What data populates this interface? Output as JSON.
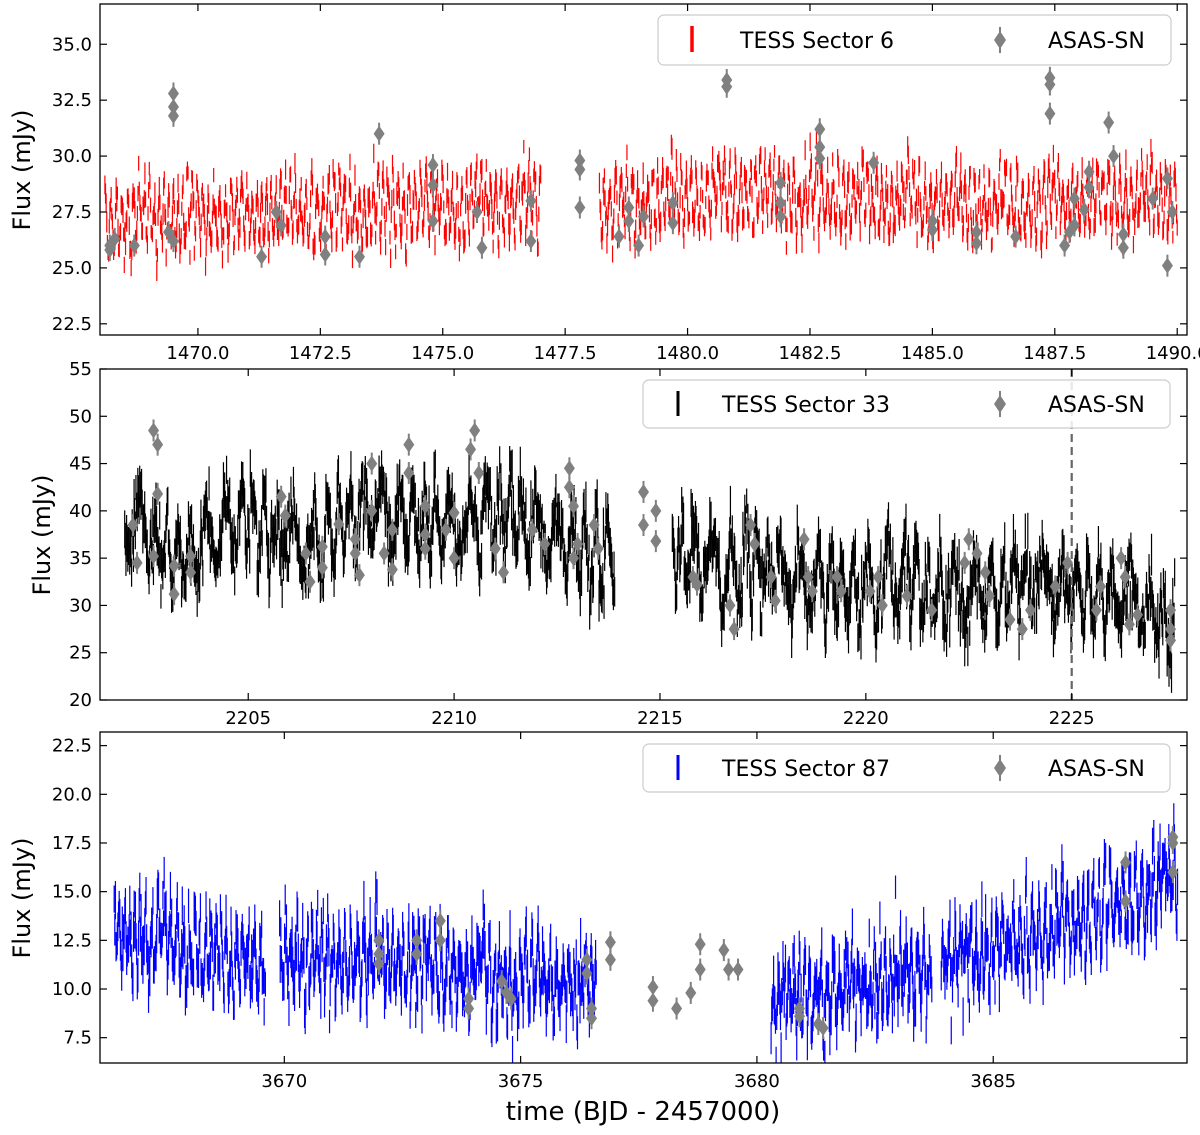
{
  "figure": {
    "xlabel": "time (BJD - 2457000)"
  },
  "colors": {
    "sector6": "#ff0000",
    "sector33": "#000000",
    "sector87": "#0000ff",
    "asassn": "#808080",
    "marker_line": "#666666"
  },
  "chart_data": [
    {
      "type": "scatter",
      "panel": "top",
      "ylabel": "Flux (mJy)",
      "xlim": [
        1468.0,
        1490.2
      ],
      "ylim": [
        22.0,
        36.8
      ],
      "xticks": [
        1470.0,
        1472.5,
        1475.0,
        1477.5,
        1480.0,
        1482.5,
        1485.0,
        1487.5,
        1490.0
      ],
      "xtick_labels": [
        "1470.0",
        "1472.5",
        "1475.0",
        "1477.5",
        "1480.0",
        "1482.5",
        "1485.0",
        "1487.5",
        "1490.0"
      ],
      "yticks": [
        22.5,
        25.0,
        27.5,
        30.0,
        32.5,
        35.0
      ],
      "ytick_labels": [
        "22.5",
        "25.0",
        "27.5",
        "30.0",
        "32.5",
        "35.0"
      ],
      "legend": [
        "TESS Sector 6",
        "ASAS-SN"
      ],
      "legend_position": "top-right",
      "tess": {
        "name": "TESS Sector 6",
        "color": "#ff0000",
        "segments": [
          [
            1468.1,
            1477.0
          ],
          [
            1478.2,
            1490.0
          ]
        ],
        "levels": [
          [
            1468.1,
            27.0
          ],
          [
            1471.0,
            27.2
          ],
          [
            1474.5,
            27.6
          ],
          [
            1477.0,
            27.8
          ],
          [
            1478.2,
            27.5
          ],
          [
            1481.0,
            28.2
          ],
          [
            1484.0,
            27.8
          ],
          [
            1487.0,
            27.6
          ],
          [
            1490.0,
            28.0
          ]
        ],
        "amplitude": 1.6,
        "period": 0.105,
        "noise": 0.35
      },
      "asassn": {
        "name": "ASAS-SN",
        "color": "#808080",
        "points": [
          [
            1468.2,
            26.0
          ],
          [
            1468.2,
            25.8
          ],
          [
            1468.3,
            26.3
          ],
          [
            1468.7,
            26.0
          ],
          [
            1469.5,
            32.8
          ],
          [
            1469.5,
            32.2
          ],
          [
            1469.5,
            31.8
          ],
          [
            1469.4,
            26.6
          ],
          [
            1469.5,
            26.2
          ],
          [
            1471.3,
            25.5
          ],
          [
            1471.6,
            27.5
          ],
          [
            1471.7,
            26.9
          ],
          [
            1472.6,
            26.4
          ],
          [
            1472.6,
            25.6
          ],
          [
            1473.3,
            25.5
          ],
          [
            1473.7,
            31.0
          ],
          [
            1474.8,
            29.6
          ],
          [
            1474.8,
            28.7
          ],
          [
            1474.8,
            27.1
          ],
          [
            1475.7,
            27.5
          ],
          [
            1475.8,
            25.9
          ],
          [
            1476.8,
            28.0
          ],
          [
            1476.8,
            26.2
          ],
          [
            1477.8,
            29.8
          ],
          [
            1477.8,
            29.4
          ],
          [
            1477.8,
            27.7
          ],
          [
            1478.6,
            26.4
          ],
          [
            1478.8,
            27.7
          ],
          [
            1478.8,
            27.1
          ],
          [
            1479.0,
            26.0
          ],
          [
            1479.1,
            27.3
          ],
          [
            1479.7,
            27.9
          ],
          [
            1479.7,
            27.0
          ],
          [
            1480.8,
            33.1
          ],
          [
            1480.8,
            33.4
          ],
          [
            1481.9,
            28.8
          ],
          [
            1481.9,
            27.9
          ],
          [
            1481.9,
            27.3
          ],
          [
            1482.7,
            31.2
          ],
          [
            1482.7,
            30.4
          ],
          [
            1482.7,
            29.9
          ],
          [
            1483.8,
            29.7
          ],
          [
            1485.0,
            27.1
          ],
          [
            1485.0,
            26.7
          ],
          [
            1485.9,
            26.6
          ],
          [
            1485.9,
            26.1
          ],
          [
            1486.7,
            26.4
          ],
          [
            1487.4,
            33.2
          ],
          [
            1487.4,
            33.5
          ],
          [
            1487.4,
            31.9
          ],
          [
            1487.7,
            26.0
          ],
          [
            1487.8,
            26.6
          ],
          [
            1487.9,
            26.9
          ],
          [
            1487.9,
            28.1
          ],
          [
            1488.1,
            27.6
          ],
          [
            1488.2,
            28.6
          ],
          [
            1488.2,
            29.3
          ],
          [
            1488.6,
            31.5
          ],
          [
            1488.7,
            30.0
          ],
          [
            1488.9,
            26.5
          ],
          [
            1488.9,
            25.9
          ],
          [
            1489.5,
            28.1
          ],
          [
            1489.8,
            29.0
          ],
          [
            1489.9,
            27.5
          ],
          [
            1489.8,
            25.1
          ]
        ]
      }
    },
    {
      "type": "scatter",
      "panel": "middle",
      "ylabel": "Flux (mJy)",
      "xlim": [
        2201.4,
        2227.8
      ],
      "ylim": [
        20,
        55
      ],
      "xticks": [
        2205,
        2210,
        2215,
        2220,
        2225
      ],
      "xtick_labels": [
        "2205",
        "2210",
        "2215",
        "2220",
        "2225"
      ],
      "yticks": [
        20,
        25,
        30,
        35,
        40,
        45,
        50,
        55
      ],
      "ytick_labels": [
        "20",
        "25",
        "30",
        "35",
        "40",
        "45",
        "50",
        "55"
      ],
      "legend": [
        "TESS Sector 33",
        "ASAS-SN"
      ],
      "legend_position": "top-right",
      "vline_x": 2225.0,
      "tess": {
        "name": "TESS Sector 33",
        "color": "#000000",
        "segments": [
          [
            2202.0,
            2213.9
          ],
          [
            2215.3,
            2227.5
          ]
        ],
        "levels": [
          [
            2202.0,
            39.0
          ],
          [
            2203.5,
            34.5
          ],
          [
            2205.0,
            38.5
          ],
          [
            2206.5,
            36.0
          ],
          [
            2208.0,
            39.5
          ],
          [
            2210.0,
            38.5
          ],
          [
            2212.0,
            38.0
          ],
          [
            2213.9,
            34.5
          ],
          [
            2215.3,
            36.0
          ],
          [
            2217.0,
            33.0
          ],
          [
            2219.0,
            32.0
          ],
          [
            2221.0,
            31.0
          ],
          [
            2223.0,
            31.5
          ],
          [
            2225.0,
            31.5
          ],
          [
            2226.5,
            30.5
          ],
          [
            2227.5,
            24.5
          ]
        ],
        "amplitude": 4.0,
        "period": 0.35,
        "noise": 1.6
      },
      "asassn": {
        "name": "ASAS-SN",
        "color": "#808080",
        "points": [
          [
            2202.2,
            38.5
          ],
          [
            2202.3,
            34.5
          ],
          [
            2202.7,
            48.5
          ],
          [
            2202.8,
            47.0
          ],
          [
            2202.8,
            41.8
          ],
          [
            2202.7,
            35.2
          ],
          [
            2203.2,
            34.2
          ],
          [
            2203.2,
            31.2
          ],
          [
            2203.6,
            35.2
          ],
          [
            2203.6,
            33.5
          ],
          [
            2205.8,
            41.5
          ],
          [
            2205.9,
            39.5
          ],
          [
            2206.4,
            35.5
          ],
          [
            2206.5,
            32.5
          ],
          [
            2206.8,
            36.2
          ],
          [
            2206.8,
            34.0
          ],
          [
            2207.2,
            38.6
          ],
          [
            2207.6,
            37.0
          ],
          [
            2207.6,
            35.5
          ],
          [
            2207.7,
            33.2
          ],
          [
            2208.0,
            45.0
          ],
          [
            2208.0,
            40.0
          ],
          [
            2208.3,
            35.5
          ],
          [
            2208.5,
            38.0
          ],
          [
            2208.5,
            33.8
          ],
          [
            2208.9,
            47.0
          ],
          [
            2208.9,
            44.0
          ],
          [
            2209.3,
            40.5
          ],
          [
            2209.3,
            37.5
          ],
          [
            2209.3,
            36.0
          ],
          [
            2209.8,
            38.0
          ],
          [
            2210.0,
            39.8
          ],
          [
            2210.0,
            35.0
          ],
          [
            2210.4,
            46.5
          ],
          [
            2210.5,
            48.5
          ],
          [
            2210.6,
            44.0
          ],
          [
            2211.0,
            36.0
          ],
          [
            2211.2,
            33.5
          ],
          [
            2211.9,
            38.0
          ],
          [
            2212.2,
            36.5
          ],
          [
            2212.8,
            44.5
          ],
          [
            2212.8,
            42.5
          ],
          [
            2212.9,
            40.5
          ],
          [
            2212.9,
            35.0
          ],
          [
            2213.0,
            36.5
          ],
          [
            2213.4,
            38.5
          ],
          [
            2213.5,
            36.0
          ],
          [
            2214.6,
            42.0
          ],
          [
            2214.6,
            38.5
          ],
          [
            2214.9,
            40.0
          ],
          [
            2214.9,
            36.8
          ],
          [
            2215.8,
            33.0
          ],
          [
            2215.9,
            32.2
          ],
          [
            2216.7,
            30.0
          ],
          [
            2216.8,
            27.5
          ],
          [
            2217.2,
            38.5
          ],
          [
            2217.3,
            36.5
          ],
          [
            2217.7,
            33.0
          ],
          [
            2217.8,
            30.5
          ],
          [
            2218.5,
            37.0
          ],
          [
            2218.6,
            33.0
          ],
          [
            2218.7,
            31.5
          ],
          [
            2219.3,
            33.0
          ],
          [
            2219.4,
            31.5
          ],
          [
            2220.1,
            31.5
          ],
          [
            2220.3,
            33.0
          ],
          [
            2220.4,
            30.0
          ],
          [
            2221.0,
            31.0
          ],
          [
            2221.6,
            29.5
          ],
          [
            2222.4,
            34.5
          ],
          [
            2222.5,
            37.0
          ],
          [
            2222.7,
            35.5
          ],
          [
            2222.9,
            33.5
          ],
          [
            2223.0,
            31.0
          ],
          [
            2223.5,
            28.5
          ],
          [
            2223.8,
            27.5
          ],
          [
            2224.0,
            29.5
          ],
          [
            2224.6,
            32.0
          ],
          [
            2224.9,
            34.5
          ],
          [
            2225.6,
            29.5
          ],
          [
            2225.7,
            32.0
          ],
          [
            2226.2,
            35.0
          ],
          [
            2226.3,
            33.0
          ],
          [
            2226.4,
            28.0
          ],
          [
            2226.6,
            29.0
          ],
          [
            2227.4,
            29.5
          ],
          [
            2227.4,
            27.5
          ],
          [
            2227.4,
            26.3
          ]
        ]
      }
    },
    {
      "type": "scatter",
      "panel": "bottom",
      "ylabel": "Flux (mJy)",
      "xlim": [
        3666.1,
        3689.1
      ],
      "ylim": [
        6.2,
        23.2
      ],
      "xticks": [
        3670,
        3675,
        3680,
        3685
      ],
      "xtick_labels": [
        "3670",
        "3675",
        "3680",
        "3685"
      ],
      "yticks": [
        7.5,
        10.0,
        12.5,
        15.0,
        17.5,
        20.0,
        22.5
      ],
      "ytick_labels": [
        "7.5",
        "10.0",
        "12.5",
        "15.0",
        "17.5",
        "20.0",
        "22.5"
      ],
      "legend": [
        "TESS Sector 87",
        "ASAS-SN"
      ],
      "legend_position": "top-right",
      "tess": {
        "name": "TESS Sector 87",
        "color": "#0000ff",
        "segments": [
          [
            3666.4,
            3669.6
          ],
          [
            3669.9,
            3676.6
          ],
          [
            3680.3,
            3683.7
          ],
          [
            3683.9,
            3688.9
          ]
        ],
        "levels": [
          [
            3666.4,
            12.6
          ],
          [
            3668.0,
            12.0
          ],
          [
            3669.6,
            11.0
          ],
          [
            3669.9,
            11.5
          ],
          [
            3672.0,
            11.5
          ],
          [
            3674.0,
            10.5
          ],
          [
            3676.6,
            10.0
          ],
          [
            3680.3,
            9.0
          ],
          [
            3682.0,
            10.0
          ],
          [
            3683.7,
            10.8
          ],
          [
            3683.9,
            11.0
          ],
          [
            3685.5,
            12.2
          ],
          [
            3687.0,
            13.5
          ],
          [
            3688.9,
            15.5
          ]
        ],
        "amplitude": 1.7,
        "period": 0.12,
        "noise": 0.75
      },
      "asassn": {
        "name": "ASAS-SN",
        "color": "#808080",
        "points": [
          [
            3672.0,
            12.5
          ],
          [
            3672.0,
            11.8
          ],
          [
            3672.0,
            11.3
          ],
          [
            3672.8,
            12.5
          ],
          [
            3672.8,
            11.8
          ],
          [
            3673.3,
            13.5
          ],
          [
            3673.3,
            12.5
          ],
          [
            3673.9,
            9.5
          ],
          [
            3673.9,
            9.0
          ],
          [
            3674.6,
            10.4
          ],
          [
            3674.7,
            9.8
          ],
          [
            3674.8,
            9.5
          ],
          [
            3676.4,
            10.8
          ],
          [
            3676.4,
            11.5
          ],
          [
            3676.5,
            9.0
          ],
          [
            3676.5,
            8.5
          ],
          [
            3676.9,
            12.4
          ],
          [
            3676.9,
            11.5
          ],
          [
            3677.8,
            10.1
          ],
          [
            3677.8,
            9.4
          ],
          [
            3678.3,
            9.0
          ],
          [
            3678.6,
            9.8
          ],
          [
            3678.8,
            12.3
          ],
          [
            3678.8,
            11.0
          ],
          [
            3679.3,
            12.0
          ],
          [
            3679.4,
            11.0
          ],
          [
            3679.6,
            11.0
          ],
          [
            3680.9,
            9.0
          ],
          [
            3680.9,
            8.6
          ],
          [
            3681.3,
            8.2
          ],
          [
            3681.4,
            8.0
          ],
          [
            3687.8,
            16.5
          ],
          [
            3687.8,
            14.5
          ],
          [
            3688.8,
            17.8
          ],
          [
            3688.8,
            17.5
          ],
          [
            3688.8,
            16.0
          ]
        ]
      }
    }
  ]
}
